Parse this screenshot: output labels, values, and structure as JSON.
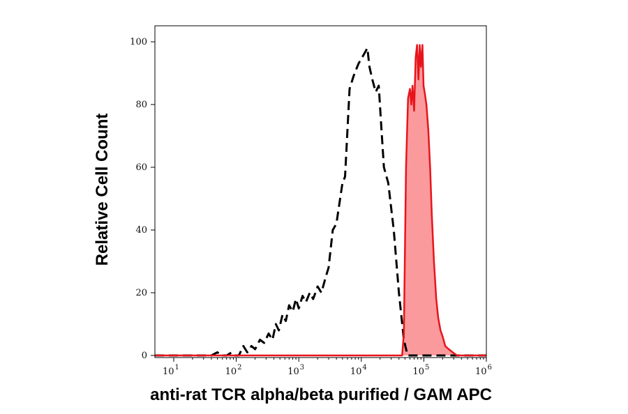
{
  "chart_data": {
    "type": "area",
    "title": "",
    "xlabel": "anti-rat TCR alpha/beta purified / GAM APC",
    "ylabel": "Relative Cell Count",
    "x_scale": "log",
    "xlim": [
      5,
      1000000
    ],
    "ylim": [
      0,
      100
    ],
    "yticks": [
      {
        "value": 0,
        "label": "0"
      },
      {
        "value": 20,
        "label": "20"
      },
      {
        "value": 40,
        "label": "40"
      },
      {
        "value": 60,
        "label": "60"
      },
      {
        "value": 80,
        "label": "80"
      },
      {
        "value": 100,
        "label": "100"
      }
    ],
    "xticks": [
      {
        "value": 10,
        "base": "10",
        "exp": "1"
      },
      {
        "value": 100,
        "base": "10",
        "exp": "2"
      },
      {
        "value": 1000,
        "base": "10",
        "exp": "3"
      },
      {
        "value": 10000,
        "base": "10",
        "exp": "4"
      },
      {
        "value": 100000,
        "base": "10",
        "exp": "5"
      },
      {
        "value": 1000000,
        "base": "10",
        "exp": "6"
      }
    ],
    "grid": false,
    "series": [
      {
        "style": "dashed",
        "color": "#000000",
        "fill": "none",
        "points": [
          [
            5,
            0
          ],
          [
            40,
            0
          ],
          [
            50,
            1
          ],
          [
            58,
            0
          ],
          [
            70,
            0
          ],
          [
            85,
            1
          ],
          [
            95,
            0
          ],
          [
            110,
            0
          ],
          [
            130,
            3
          ],
          [
            150,
            1
          ],
          [
            175,
            3
          ],
          [
            200,
            2
          ],
          [
            240,
            5
          ],
          [
            280,
            4
          ],
          [
            330,
            7
          ],
          [
            380,
            5
          ],
          [
            430,
            10
          ],
          [
            480,
            8
          ],
          [
            550,
            13
          ],
          [
            620,
            11
          ],
          [
            700,
            16
          ],
          [
            800,
            14
          ],
          [
            900,
            18
          ],
          [
            1000,
            15
          ],
          [
            1150,
            19
          ],
          [
            1300,
            17
          ],
          [
            1500,
            20
          ],
          [
            1700,
            18
          ],
          [
            2000,
            22
          ],
          [
            2300,
            20
          ],
          [
            2700,
            25
          ],
          [
            3000,
            28
          ],
          [
            3500,
            40
          ],
          [
            4000,
            42
          ],
          [
            5000,
            55
          ],
          [
            5500,
            57
          ],
          [
            6500,
            85
          ],
          [
            7500,
            89
          ],
          [
            9000,
            93
          ],
          [
            11000,
            96
          ],
          [
            12500,
            98
          ],
          [
            13500,
            92
          ],
          [
            15000,
            88
          ],
          [
            17000,
            84
          ],
          [
            19000,
            86
          ],
          [
            21000,
            72
          ],
          [
            23000,
            60
          ],
          [
            27000,
            55
          ],
          [
            33000,
            40
          ],
          [
            40000,
            20
          ],
          [
            48000,
            5
          ],
          [
            55000,
            0
          ],
          [
            1000000,
            0
          ]
        ]
      },
      {
        "style": "solid",
        "color": "#e8141b",
        "fill": "#fb9a9d",
        "points": [
          [
            5,
            0
          ],
          [
            45000,
            0
          ],
          [
            48000,
            7
          ],
          [
            52000,
            60
          ],
          [
            56000,
            82
          ],
          [
            60000,
            85
          ],
          [
            63000,
            80
          ],
          [
            66000,
            86
          ],
          [
            70000,
            78
          ],
          [
            74000,
            95
          ],
          [
            78000,
            99
          ],
          [
            82000,
            88
          ],
          [
            86000,
            99
          ],
          [
            90000,
            92
          ],
          [
            95000,
            99
          ],
          [
            99000,
            86
          ],
          [
            103000,
            84
          ],
          [
            110000,
            80
          ],
          [
            118000,
            72
          ],
          [
            126000,
            60
          ],
          [
            134000,
            45
          ],
          [
            145000,
            30
          ],
          [
            158000,
            18
          ],
          [
            170000,
            12
          ],
          [
            185000,
            8
          ],
          [
            200000,
            6
          ],
          [
            220000,
            3
          ],
          [
            250000,
            2
          ],
          [
            290000,
            1
          ],
          [
            340000,
            0
          ],
          [
            1000000,
            0
          ]
        ]
      }
    ]
  }
}
